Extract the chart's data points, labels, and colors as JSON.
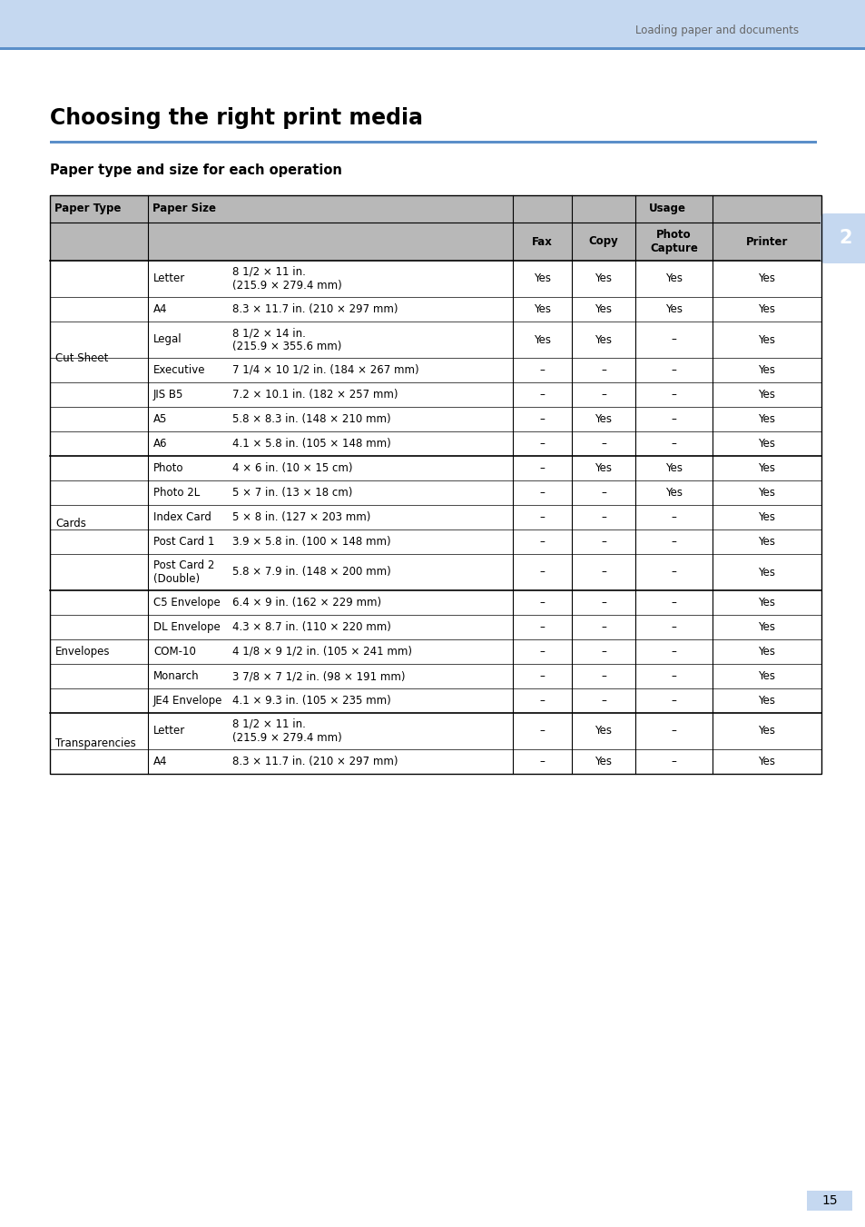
{
  "page_bg": "#ffffff",
  "header_bg": "#c5d8f0",
  "header_line_color": "#5b8fc9",
  "header_text": "Loading paper and documents",
  "header_text_color": "#666666",
  "title": "Choosing the right print media",
  "subtitle": "Paper type and size for each operation",
  "table_header_bg": "#b8b8b8",
  "page_number": "15",
  "page_number_bg": "#c5d8f0",
  "tab_number": "2",
  "tab_bg": "#c5d8f0",
  "usage_sub_headers": [
    "Fax",
    "Copy",
    "Photo\nCapture",
    "Printer"
  ],
  "rows": [
    [
      "Cut Sheet",
      "Letter",
      "8 1/2 × 11 in.\n(215.9 × 279.4 mm)",
      "Yes",
      "Yes",
      "Yes",
      "Yes"
    ],
    [
      "",
      "A4",
      "8.3 × 11.7 in. (210 × 297 mm)",
      "Yes",
      "Yes",
      "Yes",
      "Yes"
    ],
    [
      "",
      "Legal",
      "8 1/2 × 14 in.\n(215.9 × 355.6 mm)",
      "Yes",
      "Yes",
      "–",
      "Yes"
    ],
    [
      "",
      "Executive",
      "7 1/4 × 10 1/2 in. (184 × 267 mm)",
      "–",
      "–",
      "–",
      "Yes"
    ],
    [
      "",
      "JIS B5",
      "7.2 × 10.1 in. (182 × 257 mm)",
      "–",
      "–",
      "–",
      "Yes"
    ],
    [
      "",
      "A5",
      "5.8 × 8.3 in. (148 × 210 mm)",
      "–",
      "Yes",
      "–",
      "Yes"
    ],
    [
      "",
      "A6",
      "4.1 × 5.8 in. (105 × 148 mm)",
      "–",
      "–",
      "–",
      "Yes"
    ],
    [
      "Cards",
      "Photo",
      "4 × 6 in. (10 × 15 cm)",
      "–",
      "Yes",
      "Yes",
      "Yes"
    ],
    [
      "",
      "Photo 2L",
      "5 × 7 in. (13 × 18 cm)",
      "–",
      "–",
      "Yes",
      "Yes"
    ],
    [
      "",
      "Index Card",
      "5 × 8 in. (127 × 203 mm)",
      "–",
      "–",
      "–",
      "Yes"
    ],
    [
      "",
      "Post Card 1",
      "3.9 × 5.8 in. (100 × 148 mm)",
      "–",
      "–",
      "–",
      "Yes"
    ],
    [
      "",
      "Post Card 2\n(Double)",
      "5.8 × 7.9 in. (148 × 200 mm)",
      "–",
      "–",
      "–",
      "Yes"
    ],
    [
      "Envelopes",
      "C5 Envelope",
      "6.4 × 9 in. (162 × 229 mm)",
      "–",
      "–",
      "–",
      "Yes"
    ],
    [
      "",
      "DL Envelope",
      "4.3 × 8.7 in. (110 × 220 mm)",
      "–",
      "–",
      "–",
      "Yes"
    ],
    [
      "",
      "COM-10",
      "4 1/8 × 9 1/2 in. (105 × 241 mm)",
      "–",
      "–",
      "–",
      "Yes"
    ],
    [
      "",
      "Monarch",
      "3 7/8 × 7 1/2 in. (98 × 191 mm)",
      "–",
      "–",
      "–",
      "Yes"
    ],
    [
      "",
      "JE4 Envelope",
      "4.1 × 9.3 in. (105 × 235 mm)",
      "–",
      "–",
      "–",
      "Yes"
    ],
    [
      "Transparencies",
      "Letter",
      "8 1/2 × 11 in.\n(215.9 × 279.4 mm)",
      "–",
      "Yes",
      "–",
      "Yes"
    ],
    [
      "",
      "A4",
      "8.3 × 11.7 in. (210 × 297 mm)",
      "–",
      "Yes",
      "–",
      "Yes"
    ]
  ],
  "group_start_rows": {
    "Cut Sheet": 0,
    "Cards": 7,
    "Envelopes": 12,
    "Transparencies": 17
  },
  "group_end_rows": {
    "Cut Sheet": 6,
    "Cards": 11,
    "Envelopes": 16,
    "Transparencies": 18
  },
  "group_sep_before": [
    7,
    12,
    17
  ]
}
